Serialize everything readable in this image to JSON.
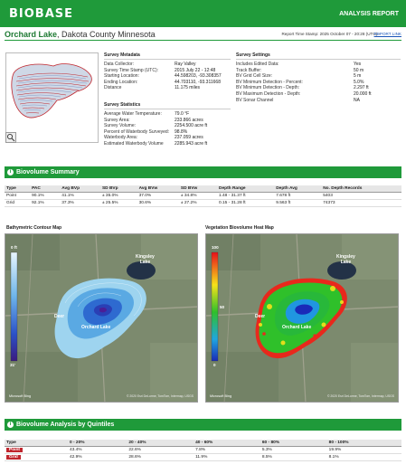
{
  "header": {
    "logo": "BIOBASE",
    "report_title": "ANALYSIS REPORT"
  },
  "title": {
    "lake": "Orchard Lake",
    "county": ", Dakota County Minnesota",
    "timestamp": "Report Time Stamp: 2025 October 07 - 20:28 (UTC) -",
    "link": "REPORT LINK"
  },
  "metadata": {
    "heading": "Survey Metadata",
    "rows": [
      {
        "k": "Data Collector:",
        "v": "Ray Valley"
      },
      {
        "k": "Survey Time Stamp (UTC):",
        "v": "2015 July 22 - 12:48"
      },
      {
        "k": "Starting Location:",
        "v": "44.598203, -93.308357"
      },
      {
        "k": "Ending Location:",
        "v": "44.703110, -93.311668"
      },
      {
        "k": "Distance",
        "v": "11.175 miles"
      }
    ]
  },
  "settings": {
    "heading": "Survey Settings",
    "rows": [
      {
        "k": "Includes Edited Data:",
        "v": "Yes"
      },
      {
        "k": "Track Buffer:",
        "v": "50 m"
      },
      {
        "k": "BV Grid Cell Size:",
        "v": "5 m"
      },
      {
        "k": "BV Minimum Detection - Percent:",
        "v": "5.0%"
      },
      {
        "k": "BV Minimum Detection - Depth:",
        "v": "2.297 ft"
      },
      {
        "k": "BV Maximum Detection - Depth:",
        "v": "20.000 ft"
      },
      {
        "k": "BV Sonar Channel",
        "v": "NA"
      }
    ]
  },
  "statistics": {
    "heading": "Survey Statistics",
    "rows": [
      {
        "k": "Average Water Temperature:",
        "v": "79.0 °F"
      },
      {
        "k": "Survey Area:",
        "v": "233.866 acres"
      },
      {
        "k": "Survey Volume:",
        "v": "2254.500 acre ft"
      },
      {
        "k": "Percent of Waterbody Surveyed:",
        "v": "98.8%"
      },
      {
        "k": "Waterbody Area:",
        "v": "237.059 acres"
      },
      {
        "k": "Estimated Waterbody Volume",
        "v": "2285.943 acre ft"
      }
    ]
  },
  "summary": {
    "banner": "Biovolume Summary",
    "headers": [
      "Type",
      "PAC",
      "Avg BVp",
      "SD BVp",
      "Avg BVw",
      "SD BVw",
      "Depth Range",
      "Depth Avg",
      "No. Depth Records"
    ],
    "rows": [
      [
        "Point",
        "90.1%",
        "41.1%",
        "± 35.0%",
        "37.0%",
        "± 34.8%",
        "1.48 - 31.37 ft",
        "7.678 ft",
        "5403"
      ],
      [
        "Grid",
        "92.1%",
        "37.3%",
        "± 25.5%",
        "30.6%",
        "± 27.2%",
        "0.15 - 31.28 ft",
        "9.563 ft",
        "74373"
      ]
    ]
  },
  "maps": {
    "contour_title": "Bathymetric Contour Map",
    "heat_title": "Vegetation Biovolume Heat Map",
    "contour_legend_top": "0 ft",
    "contour_legend_bottom": "31'",
    "heat_legend_top": "100",
    "heat_legend_mid": "50",
    "heat_legend_bottom": "0",
    "labels": {
      "kingsley": "Kingsley",
      "lake": "Lake",
      "deer": "Deer",
      "orchard": "Orchard Lake"
    },
    "attribution": "© 2020 Esri  DeLorme, TomTom, Intermap, USGS",
    "brand": "Microsoft Bing"
  },
  "quintiles": {
    "banner": "Biovolume Analysis by Quintiles",
    "headers": [
      "Type",
      "0 - 20%",
      "20 - 40%",
      "40 - 60%",
      "60 - 80%",
      "80 - 100%"
    ],
    "rows": [
      [
        "Point",
        "43.4%",
        "22.6%",
        "7.8%",
        "5.3%",
        "19.9%"
      ],
      [
        "Grid",
        "42.9%",
        "28.6%",
        "11.9%",
        "8.5%",
        "8.1%"
      ]
    ]
  },
  "colors": {
    "brand_green": "#1f9a3a",
    "link_blue": "#1a55b8",
    "point_tag": "#c0262d",
    "grid_tag": "#c0262d"
  }
}
